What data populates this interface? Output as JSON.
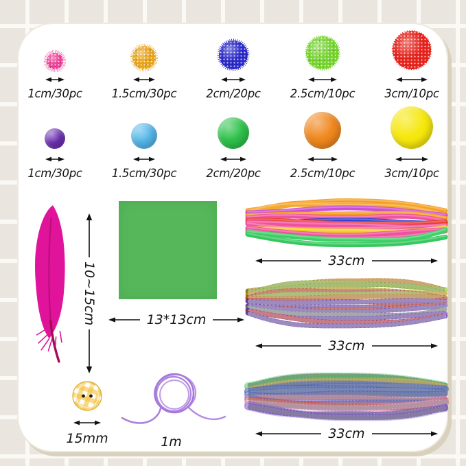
{
  "page": {
    "background_tile": "#eae5de",
    "grid_line": "#fbf9f5",
    "card_bg": "#ffffff",
    "card_shadow": "#d8d1bd",
    "text_color": "#141414"
  },
  "pom_rows": [
    {
      "name": "glitter-pompoms",
      "items": [
        {
          "label": "1cm/30pc",
          "color": "#ee3f98"
        },
        {
          "label": "1.5cm/30pc",
          "color": "#e7a31a"
        },
        {
          "label": "2cm/20pc",
          "color": "#2a28c8"
        },
        {
          "label": "2.5cm/10pc",
          "color": "#74d32c"
        },
        {
          "label": "3cm/10pc",
          "color": "#e8211a"
        }
      ]
    },
    {
      "name": "plain-pompoms",
      "items": [
        {
          "label": "1cm/30pc",
          "color": "#6d30b2"
        },
        {
          "label": "1.5cm/30pc",
          "color": "#55b8ea"
        },
        {
          "label": "2cm/20pc",
          "color": "#2ec24b"
        },
        {
          "label": "2.5cm/10pc",
          "color": "#f0881f"
        },
        {
          "label": "3cm/10pc",
          "color": "#f6e70d"
        }
      ]
    }
  ],
  "feather": {
    "label": "10~15cm",
    "color": "#e0139b"
  },
  "paper": {
    "label": "13*13cm",
    "color": "#55b75a"
  },
  "bundles": [
    {
      "label": "33cm",
      "style": "plain",
      "colors": [
        "#f6a026",
        "#f49a20",
        "#f6a82e",
        "#cb4ed2",
        "#f49a20",
        "#ee549e",
        "#2c3ed0",
        "#e83a2b",
        "#f0509e",
        "#ef5aa2",
        "#f2cd1c",
        "#f0509e",
        "#ee4f9c",
        "#3fd068",
        "#36c85f"
      ]
    },
    {
      "label": "33cm",
      "style": "striped",
      "colors": [
        "#f49a20",
        "#a8d934",
        "#98d028",
        "#f2c81e",
        "#e8542b",
        "#aad636",
        "#f08c28",
        "#e8392b",
        "#8456d6",
        "#7a4fd0",
        "#e8392b",
        "#8456d6",
        "#9aa0a8",
        "#7a4fd0",
        "#e23a52",
        "#8456d6"
      ]
    },
    {
      "label": "33cm",
      "style": "tinsel",
      "colors": [
        "#35b54f",
        "#3dbf55",
        "#e3c122",
        "#3056cc",
        "#3a5fd4",
        "#2f52c8",
        "#4868dd",
        "#2f52c8",
        "#e87ab0",
        "#3056cc",
        "#f06a9e",
        "#e8392b",
        "#ef92bc",
        "#8a5ad8",
        "#7a4fd0",
        "#6b46c4"
      ]
    }
  ],
  "button": {
    "label": "15mm"
  },
  "cord": {
    "label": "1m",
    "color": "#a678dd"
  }
}
